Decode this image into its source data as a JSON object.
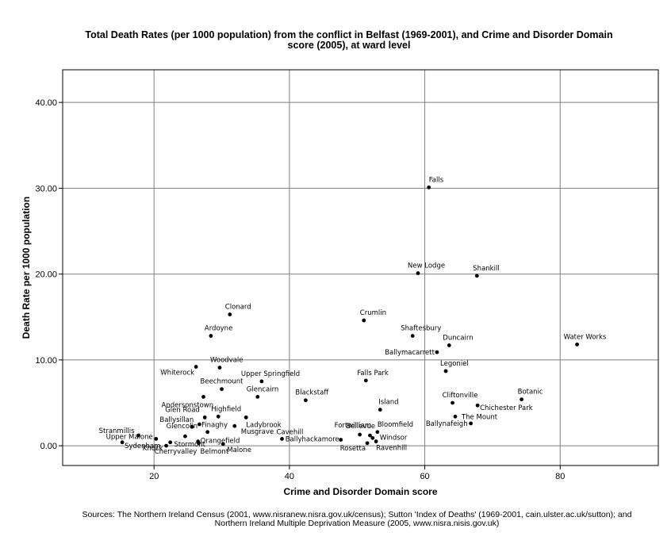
{
  "chart_data": {
    "type": "scatter",
    "title_lines": [
      "Total Death Rates (per 1000 population) from the conflict in Belfast (1969-2001), and Crime and Disorder Domain",
      "score (2005), at ward level"
    ],
    "xlabel": "Crime and Disorder Domain score",
    "ylabel": "Death Rate per 1000 population",
    "xlim": [
      6.5,
      94.5
    ],
    "ylim": [
      -2.3,
      43.8
    ],
    "xticks": [
      20,
      40,
      60,
      80
    ],
    "xtick_labels": [
      "20",
      "40",
      "60",
      "80"
    ],
    "yticks": [
      0,
      10,
      20,
      30,
      40
    ],
    "ytick_labels": [
      "0.00",
      "10.00",
      "20.00",
      "30.00",
      "40.00"
    ],
    "grid": true,
    "points": [
      {
        "label": "Falls",
        "x": 60.6,
        "y": 30.1
      },
      {
        "label": "New Lodge",
        "x": 59.0,
        "y": 20.1
      },
      {
        "label": "Shankill",
        "x": 67.7,
        "y": 19.8
      },
      {
        "label": "Clonard",
        "x": 31.2,
        "y": 15.3
      },
      {
        "label": "Crumlin",
        "x": 51.0,
        "y": 14.6
      },
      {
        "label": "Ardoyne",
        "x": 28.4,
        "y": 12.8
      },
      {
        "label": "Shaftesbury",
        "x": 58.2,
        "y": 12.8
      },
      {
        "label": "Duncairn",
        "x": 63.6,
        "y": 11.7
      },
      {
        "label": "Water Works",
        "x": 82.5,
        "y": 11.8
      },
      {
        "label": "Ballymacarrett",
        "x": 61.8,
        "y": 10.9
      },
      {
        "label": "Woodvale",
        "x": 29.7,
        "y": 9.1
      },
      {
        "label": "Whiterock",
        "x": 26.2,
        "y": 9.2
      },
      {
        "label": "Legoniel",
        "x": 63.1,
        "y": 8.7
      },
      {
        "label": "Falls Park",
        "x": 51.3,
        "y": 7.6
      },
      {
        "label": "Upper Springfield",
        "x": 35.9,
        "y": 7.5
      },
      {
        "label": "Beechmount",
        "x": 30.0,
        "y": 6.6
      },
      {
        "label": "Glencairn",
        "x": 35.3,
        "y": 5.7
      },
      {
        "label": "Andersonstown",
        "x": 27.3,
        "y": 5.7
      },
      {
        "label": "Blackstaff",
        "x": 42.4,
        "y": 5.3
      },
      {
        "label": "Botanic",
        "x": 74.3,
        "y": 5.4
      },
      {
        "label": "Cliftonville",
        "x": 64.1,
        "y": 5.0
      },
      {
        "label": "Chichester Park",
        "x": 67.8,
        "y": 4.7
      },
      {
        "label": "Island",
        "x": 53.4,
        "y": 4.2
      },
      {
        "label": "Highfield",
        "x": 29.5,
        "y": 3.4
      },
      {
        "label": "Glen Road",
        "x": 27.5,
        "y": 3.3
      },
      {
        "label": "Ladybrook",
        "x": 33.6,
        "y": 3.3
      },
      {
        "label": "The Mount",
        "x": 64.5,
        "y": 3.4
      },
      {
        "label": "Ballynafeigh",
        "x": 66.8,
        "y": 2.6
      },
      {
        "label": "Ballysillan",
        "x": 26.7,
        "y": 2.5
      },
      {
        "label": "Musgrave",
        "x": 31.9,
        "y": 2.3
      },
      {
        "label": "Finaghy",
        "x": 25.6,
        "y": 2.2
      },
      {
        "label": "Glencolin",
        "x": 27.9,
        "y": 1.6
      },
      {
        "label": "Stranmillis",
        "x": 17.7,
        "y": 1.2
      },
      {
        "label": "Upper Malone",
        "x": 20.3,
        "y": 0.8
      },
      {
        "label": "Cavehill",
        "x": 38.9,
        "y": 0.8
      },
      {
        "label": "Fortwilliam",
        "x": 50.4,
        "y": 1.3
      },
      {
        "label": "Bloomfield",
        "x": 53.0,
        "y": 1.6
      },
      {
        "label": "Bellevue",
        "x": 51.9,
        "y": 1.2
      },
      {
        "label": "Windsor",
        "x": 52.3,
        "y": 0.9
      },
      {
        "label": "Orangefield",
        "x": 26.5,
        "y": 0.5
      },
      {
        "label": "Sydenham",
        "x": 15.3,
        "y": 0.4
      },
      {
        "label": "Knock",
        "x": 21.8,
        "y": 0.0
      },
      {
        "label": "Cherryvalley",
        "x": 22.4,
        "y": 0.4
      },
      {
        "label": "Stormont",
        "x": 24.6,
        "y": 1.1
      },
      {
        "label": "Belmont",
        "x": 26.6,
        "y": 0.3
      },
      {
        "label": "Malone",
        "x": 30.2,
        "y": 0.2
      },
      {
        "label": "Ballyhackamore",
        "x": 47.6,
        "y": 0.7
      },
      {
        "label": "Rosetta",
        "x": 51.5,
        "y": 0.3
      },
      {
        "label": "Ravenhill",
        "x": 52.8,
        "y": 0.5
      }
    ]
  },
  "sources": [
    "Sources: The Northern Ireland Census (2001, www.nisranew.nisra.gov.uk/census); Sutton 'Index of Deaths' (1969-2001, cain.ulster.ac.uk/sutton); and",
    "Northern Ireland Multiple Deprivation Measure (2005, www.nisra.nisis.gov.uk)"
  ]
}
